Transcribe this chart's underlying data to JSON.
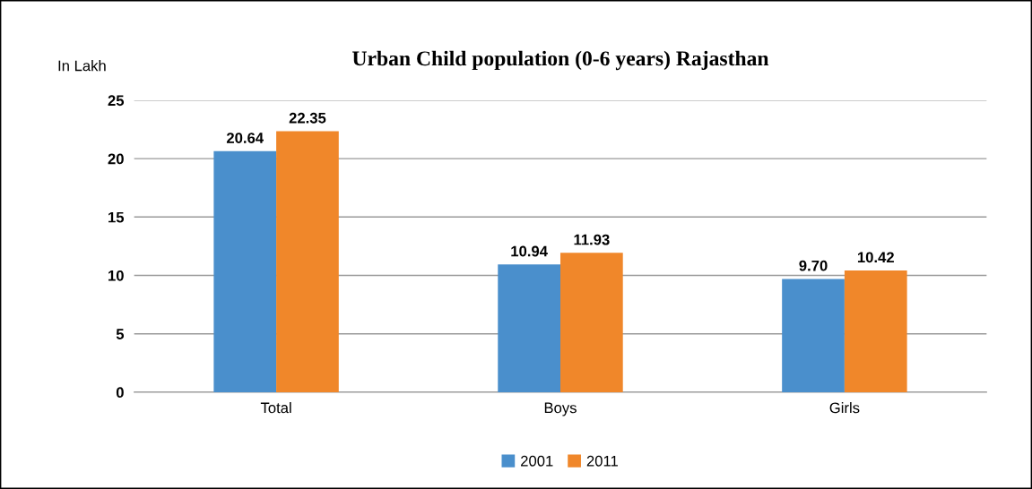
{
  "chart_data": {
    "type": "bar",
    "title": "Urban Child population (0-6 years) Rajasthan",
    "ylabel": "In Lakh",
    "categories": [
      "Total",
      "Boys",
      "Girls"
    ],
    "series": [
      {
        "name": "2001",
        "color": "#4a8fcc",
        "values": [
          20.64,
          10.94,
          9.7
        ],
        "value_labels": [
          "20.64",
          "10.94",
          "9.70"
        ]
      },
      {
        "name": "2011",
        "color": "#f0872a",
        "values": [
          22.35,
          11.93,
          10.42
        ],
        "value_labels": [
          "22.35",
          "11.93",
          "10.42"
        ]
      }
    ],
    "ylim": [
      0,
      25
    ],
    "yticks": [
      0,
      5,
      10,
      15,
      20,
      25
    ],
    "grid": "y",
    "legend": "bottom"
  }
}
